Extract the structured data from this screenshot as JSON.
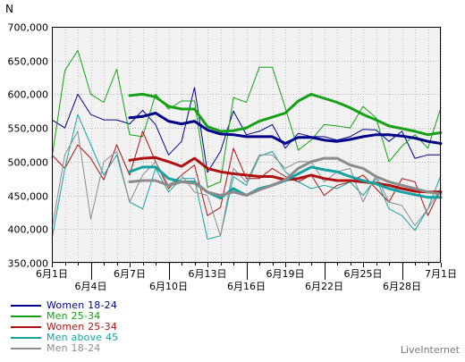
{
  "chart_data": {
    "type": "line",
    "title": "",
    "ylabel": "N",
    "xlabel": "",
    "ylim": [
      350000,
      700000
    ],
    "y_ticks": [
      "350,000",
      "400,000",
      "450,000",
      "500,000",
      "550,000",
      "600,000",
      "650,000",
      "700,000"
    ],
    "y_tick_values": [
      350000,
      400000,
      450000,
      500000,
      550000,
      600000,
      650000,
      700000
    ],
    "x_tick_labels": [
      "6月1日",
      "6月4日",
      "6月7日",
      "6月10日",
      "6月13日",
      "6月16日",
      "6月19日",
      "6月22日",
      "6月25日",
      "6月28日",
      "7月1日"
    ],
    "x_tick_days": [
      1,
      4,
      7,
      10,
      13,
      16,
      19,
      22,
      25,
      28,
      31
    ],
    "xlim_days": [
      1,
      31
    ],
    "grid": true,
    "legend_position": "bottom-left",
    "series": [
      {
        "name": "Women 18-24",
        "color": "#00008b",
        "daily_x": [
          1,
          2,
          3,
          4,
          5,
          6,
          7,
          8,
          9,
          10,
          11,
          12,
          13,
          14,
          15,
          16,
          17,
          18,
          19,
          20,
          21,
          22,
          23,
          24,
          25,
          26,
          27,
          28,
          29,
          30,
          31
        ],
        "daily": [
          562000,
          550000,
          600000,
          570000,
          562000,
          562000,
          556000,
          576000,
          555000,
          510000,
          530000,
          610000,
          484000,
          515000,
          575000,
          540000,
          545000,
          555000,
          520000,
          542000,
          537000,
          537000,
          532000,
          537000,
          548000,
          547000,
          530000,
          545000,
          505000,
          510000,
          510000
        ],
        "trend_x": [
          7,
          8,
          9,
          10,
          11,
          12,
          13,
          14,
          15,
          16,
          17,
          18,
          19,
          20,
          21,
          22,
          23,
          24,
          25,
          26,
          27,
          28,
          29,
          30,
          31
        ],
        "trend": [
          565000,
          567000,
          572000,
          560000,
          556000,
          560000,
          547000,
          541000,
          540000,
          537000,
          537000,
          537000,
          527000,
          536000,
          536000,
          532000,
          530000,
          533000,
          537000,
          540000,
          540000,
          538000,
          535000,
          530000,
          527000
        ]
      },
      {
        "name": "Men 25-34",
        "color": "#16a016",
        "daily_x": [
          1,
          2,
          3,
          4,
          5,
          6,
          7,
          8,
          9,
          10,
          11,
          12,
          13,
          14,
          15,
          16,
          17,
          18,
          19,
          20,
          21,
          22,
          23,
          24,
          25,
          26,
          27,
          28,
          29,
          30,
          31
        ],
        "daily": [
          505000,
          635000,
          665000,
          600000,
          588000,
          637000,
          540000,
          537000,
          600000,
          578000,
          590000,
          590000,
          462000,
          470000,
          595000,
          588000,
          640000,
          640000,
          580000,
          517000,
          532000,
          555000,
          553000,
          550000,
          582000,
          565000,
          500000,
          523000,
          540000,
          520000,
          580000
        ],
        "trend_x": [
          7,
          8,
          9,
          10,
          11,
          12,
          13,
          14,
          15,
          16,
          17,
          18,
          19,
          20,
          21,
          22,
          23,
          24,
          25,
          26,
          27,
          28,
          29,
          30,
          31
        ],
        "trend": [
          598000,
          600000,
          596000,
          582000,
          578000,
          578000,
          552000,
          545000,
          546000,
          550000,
          560000,
          566000,
          572000,
          590000,
          600000,
          594000,
          588000,
          580000,
          570000,
          562000,
          553000,
          549000,
          545000,
          540000,
          543000
        ]
      },
      {
        "name": "Women 25-34",
        "color": "#b01010",
        "daily_x": [
          1,
          2,
          3,
          4,
          5,
          6,
          7,
          8,
          9,
          10,
          11,
          12,
          13,
          14,
          15,
          16,
          17,
          18,
          19,
          20,
          21,
          22,
          23,
          24,
          25,
          26,
          27,
          28,
          29,
          30,
          31
        ],
        "daily": [
          510000,
          490000,
          525000,
          505000,
          473000,
          525000,
          480000,
          545000,
          500000,
          460000,
          480000,
          495000,
          420000,
          432000,
          520000,
          475000,
          475000,
          490000,
          478000,
          470000,
          480000,
          450000,
          465000,
          470000,
          480000,
          460000,
          440000,
          475000,
          470000,
          420000,
          460000
        ],
        "trend_x": [
          7,
          8,
          9,
          10,
          11,
          12,
          13,
          14,
          15,
          16,
          17,
          18,
          19,
          20,
          21,
          22,
          23,
          24,
          25,
          26,
          27,
          28,
          29,
          30,
          31
        ],
        "trend": [
          502000,
          505000,
          506000,
          500000,
          493000,
          505000,
          490000,
          485000,
          482000,
          480000,
          478000,
          478000,
          473000,
          475000,
          480000,
          475000,
          472000,
          472000,
          470000,
          468000,
          465000,
          460000,
          456000,
          455000,
          455000
        ]
      },
      {
        "name": "Men above 45",
        "color": "#17a2a2",
        "daily_x": [
          1,
          2,
          3,
          4,
          5,
          6,
          7,
          8,
          9,
          10,
          11,
          12,
          13,
          14,
          15,
          16,
          17,
          18,
          19,
          20,
          21,
          22,
          23,
          24,
          25,
          26,
          27,
          28,
          29,
          30,
          31
        ],
        "daily": [
          385000,
          490000,
          570000,
          525000,
          480000,
          510000,
          440000,
          430000,
          490000,
          455000,
          475000,
          475000,
          385000,
          390000,
          478000,
          465000,
          508000,
          515000,
          485000,
          470000,
          460000,
          465000,
          460000,
          470000,
          450000,
          475000,
          430000,
          420000,
          398000,
          430000,
          480000
        ],
        "trend_x": [
          7,
          8,
          9,
          10,
          11,
          12,
          13,
          14,
          15,
          16,
          17,
          18,
          19,
          20,
          21,
          22,
          23,
          24,
          25,
          26,
          27,
          28,
          29,
          30,
          31
        ],
        "trend": [
          485000,
          492000,
          492000,
          475000,
          470000,
          470000,
          455000,
          446000,
          460000,
          450000,
          460000,
          465000,
          472000,
          482000,
          492000,
          488000,
          485000,
          478000,
          472000,
          467000,
          460000,
          455000,
          451000,
          447000,
          447000
        ]
      },
      {
        "name": "Men 18-24",
        "color": "#8c8c8c",
        "daily_x": [
          1,
          2,
          3,
          4,
          5,
          6,
          7,
          8,
          9,
          10,
          11,
          12,
          13,
          14,
          15,
          16,
          17,
          18,
          19,
          20,
          21,
          22,
          23,
          24,
          25,
          26,
          27,
          28,
          29,
          30,
          31
        ],
        "daily": [
          400000,
          510000,
          545000,
          415000,
          500000,
          515000,
          440000,
          480000,
          500000,
          465000,
          480000,
          455000,
          450000,
          390000,
          490000,
          470000,
          510000,
          510000,
          490000,
          500000,
          500000,
          470000,
          485000,
          490000,
          440000,
          480000,
          440000,
          435000,
          405000,
          430000,
          460000
        ],
        "trend_x": [
          7,
          8,
          9,
          10,
          11,
          12,
          13,
          14,
          15,
          16,
          17,
          18,
          19,
          20,
          21,
          22,
          23,
          24,
          25,
          26,
          27,
          28,
          29,
          30,
          31
        ],
        "trend": [
          470000,
          472000,
          472000,
          465000,
          470000,
          468000,
          455000,
          450000,
          455000,
          450000,
          458000,
          465000,
          473000,
          490000,
          500000,
          505000,
          505000,
          495000,
          490000,
          478000,
          470000,
          465000,
          460000,
          455000,
          452000
        ]
      }
    ]
  },
  "legend": [
    {
      "label": "Women 18-24",
      "color": "#00008b"
    },
    {
      "label": "Men 25-34",
      "color": "#16a016"
    },
    {
      "label": "Women 25-34",
      "color": "#b01010"
    },
    {
      "label": "Men above 45",
      "color": "#17a2a2"
    },
    {
      "label": "Men 18-24",
      "color": "#8c8c8c"
    }
  ],
  "brand": "LiveInternet"
}
